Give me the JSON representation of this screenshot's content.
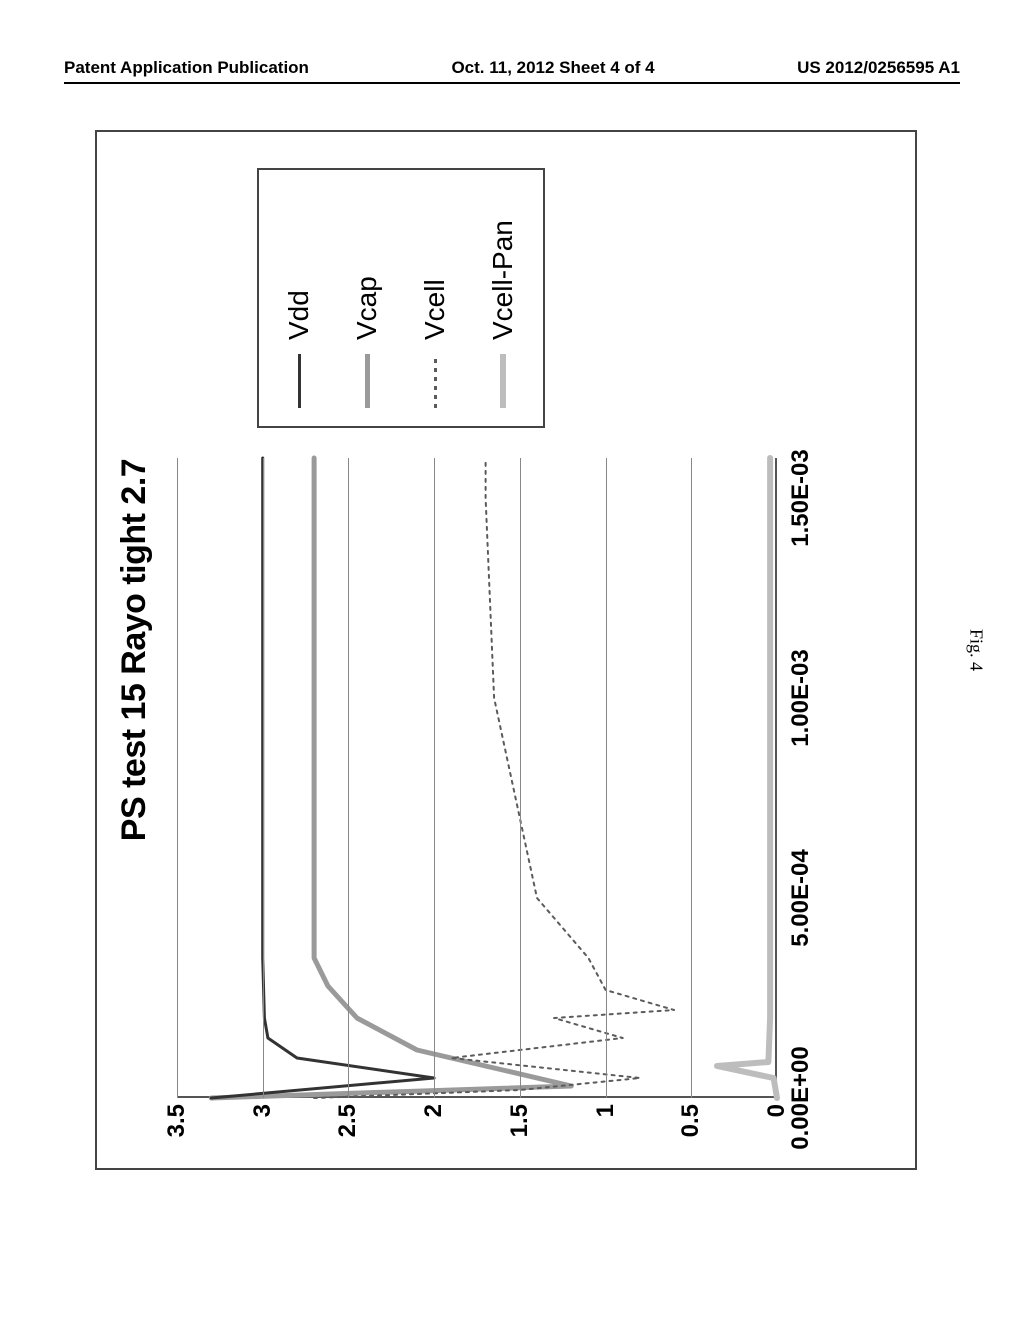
{
  "header": {
    "left": "Patent Application Publication",
    "center": "Oct. 11, 2012  Sheet 4 of 4",
    "right": "US 2012/0256595 A1"
  },
  "figure_caption": "Fig. 4",
  "chart": {
    "type": "line",
    "title": "PS test 15 Rayo tight 2.7",
    "title_fontsize": 34,
    "background_color": "#ffffff",
    "grid_color": "#888888",
    "axis_color": "#555555",
    "tick_fontsize": 24,
    "legend_fontsize": 28,
    "x": {
      "lim": [
        0.0,
        0.0016
      ],
      "ticks": [
        0.0,
        0.0005,
        0.001,
        0.0015
      ],
      "tick_labels": [
        "0.00E+00",
        "5.00E-04",
        "1.00E-03",
        "1.50E-03"
      ]
    },
    "y": {
      "lim": [
        0.0,
        3.5
      ],
      "ticks": [
        0,
        0.5,
        1,
        1.5,
        2,
        2.5,
        3,
        3.5
      ],
      "tick_labels": [
        "0",
        "0.5",
        "1",
        "1.5",
        "2",
        "2.5",
        "3",
        "3.5"
      ]
    },
    "series": [
      {
        "name": "Vdd",
        "color": "#333333",
        "width": 3,
        "dash": "",
        "points": [
          [
            0.0,
            3.3
          ],
          [
            5e-05,
            2.0
          ],
          [
            0.0001,
            2.8
          ],
          [
            0.00015,
            2.97
          ],
          [
            0.0002,
            2.99
          ],
          [
            0.00035,
            3.0
          ],
          [
            0.0005,
            3.0
          ],
          [
            0.001,
            3.0
          ],
          [
            0.0015,
            3.0
          ],
          [
            0.0016,
            3.0
          ]
        ]
      },
      {
        "name": "Vcap",
        "color": "#9a9a9a",
        "width": 5,
        "dash": "",
        "points": [
          [
            0.0,
            3.3
          ],
          [
            3e-05,
            1.2
          ],
          [
            7e-05,
            1.6
          ],
          [
            0.00012,
            2.1
          ],
          [
            0.0002,
            2.45
          ],
          [
            0.00028,
            2.62
          ],
          [
            0.00035,
            2.7
          ],
          [
            0.0005,
            2.7
          ],
          [
            0.001,
            2.7
          ],
          [
            0.0015,
            2.7
          ],
          [
            0.0016,
            2.7
          ]
        ]
      },
      {
        "name": "Vcell",
        "color": "#5b5b5b",
        "width": 2,
        "dash": "3,5",
        "points": [
          [
            0.0,
            2.7
          ],
          [
            2e-05,
            1.5
          ],
          [
            5e-05,
            0.8
          ],
          [
            0.0001,
            1.9
          ],
          [
            0.00015,
            0.9
          ],
          [
            0.0002,
            1.3
          ],
          [
            0.00022,
            0.6
          ],
          [
            0.00027,
            1.0
          ],
          [
            0.00035,
            1.1
          ],
          [
            0.0005,
            1.4
          ],
          [
            0.001,
            1.65
          ],
          [
            0.0015,
            1.7
          ],
          [
            0.0016,
            1.7
          ]
        ]
      },
      {
        "name": "Vcell-Pan",
        "color": "#bdbdbd",
        "width": 6,
        "dash": "",
        "points": [
          [
            0.0,
            0.0
          ],
          [
            5e-05,
            0.02
          ],
          [
            8e-05,
            0.35
          ],
          [
            9e-05,
            0.05
          ],
          [
            0.0002,
            0.04
          ],
          [
            0.0005,
            0.04
          ],
          [
            0.001,
            0.04
          ],
          [
            0.0015,
            0.04
          ],
          [
            0.0016,
            0.04
          ]
        ]
      }
    ]
  }
}
